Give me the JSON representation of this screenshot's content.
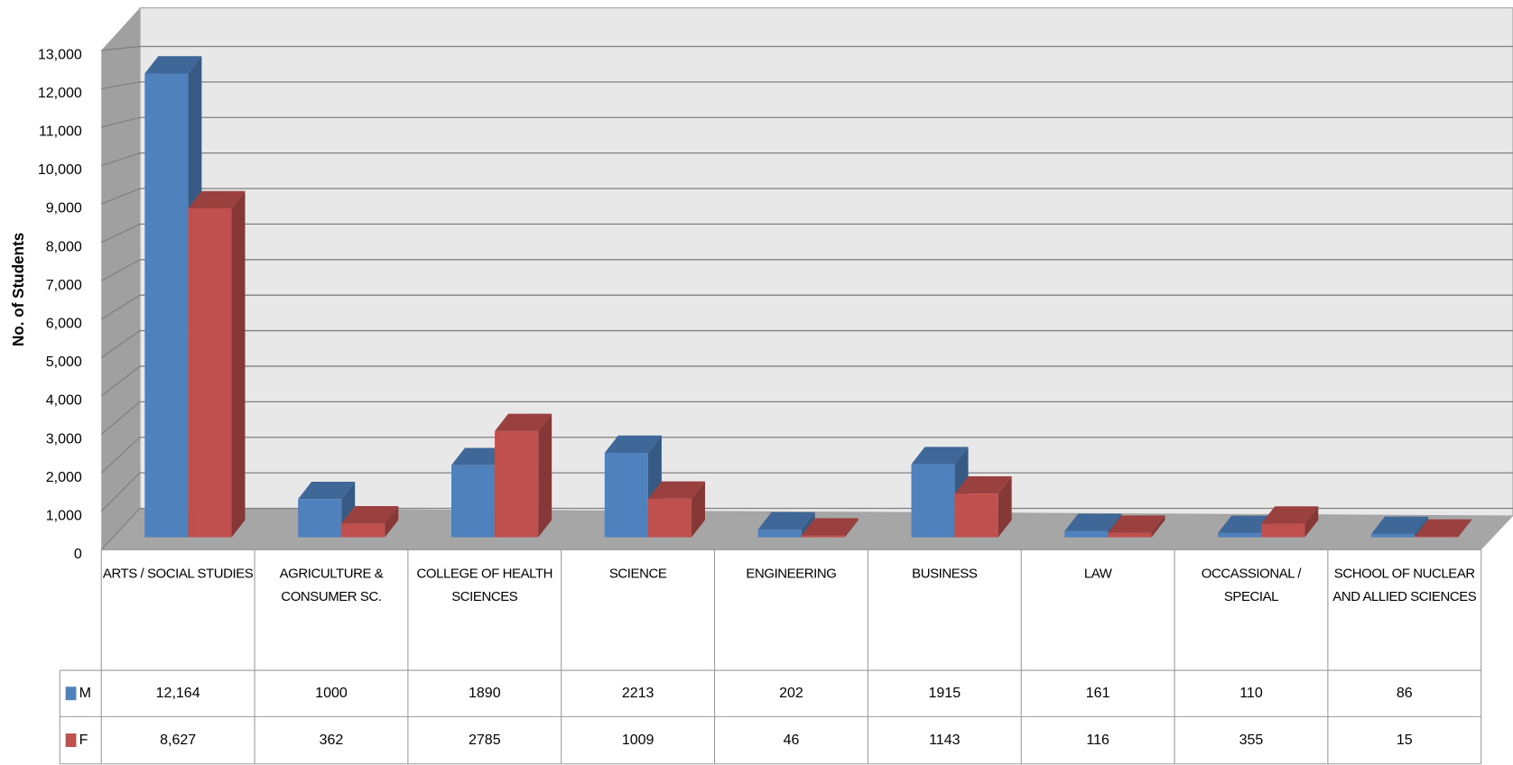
{
  "chart_data": {
    "type": "bar3d",
    "y_label": "No. of Students",
    "categories": [
      "ARTS / SOCIAL STUDIES",
      "AGRICULTURE & CONSUMER SC.",
      "COLLEGE OF HEALTH SCIENCES",
      "SCIENCE",
      "ENGINEERING",
      "BUSINESS",
      "LAW",
      "OCCASSIONAL / SPECIAL",
      "SCHOOL OF NUCLEAR AND ALLIED SCIENCES"
    ],
    "series": [
      {
        "name": "M",
        "color": "#4f81bd",
        "values": [
          12164,
          1000,
          1890,
          2213,
          202,
          1915,
          161,
          110,
          86
        ],
        "value_labels": [
          "12,164",
          "1000",
          "1890",
          "2213",
          "202",
          "1915",
          "161",
          "110",
          "86"
        ]
      },
      {
        "name": "F",
        "color": "#c0504d",
        "values": [
          8627,
          362,
          2785,
          1009,
          46,
          1143,
          116,
          355,
          15
        ],
        "value_labels": [
          "8,627",
          "362",
          "2785",
          "1009",
          "46",
          "1143",
          "116",
          "355",
          "15"
        ]
      }
    ],
    "ylim": [
      0,
      13000
    ],
    "yticks": [
      0,
      {
        "value": 1000,
        "label": "1,000"
      },
      {
        "value": 2000,
        "label": "2,000"
      },
      {
        "value": 3000,
        "label": "3,000"
      },
      {
        "value": 4000,
        "label": "4,000"
      },
      {
        "value": 5000,
        "label": "5,000"
      },
      {
        "value": 6000,
        "label": "6,000"
      },
      {
        "value": 7000,
        "label": "7,000"
      },
      {
        "value": 8000,
        "label": "8,000"
      },
      {
        "value": 9000,
        "label": "9,000"
      },
      {
        "value": 10000,
        "label": "10,000"
      },
      {
        "value": 11000,
        "label": "11,000"
      },
      {
        "value": 12000,
        "label": "12,000"
      },
      {
        "value": 13000,
        "label": "13,000"
      }
    ],
    "grid": true
  }
}
